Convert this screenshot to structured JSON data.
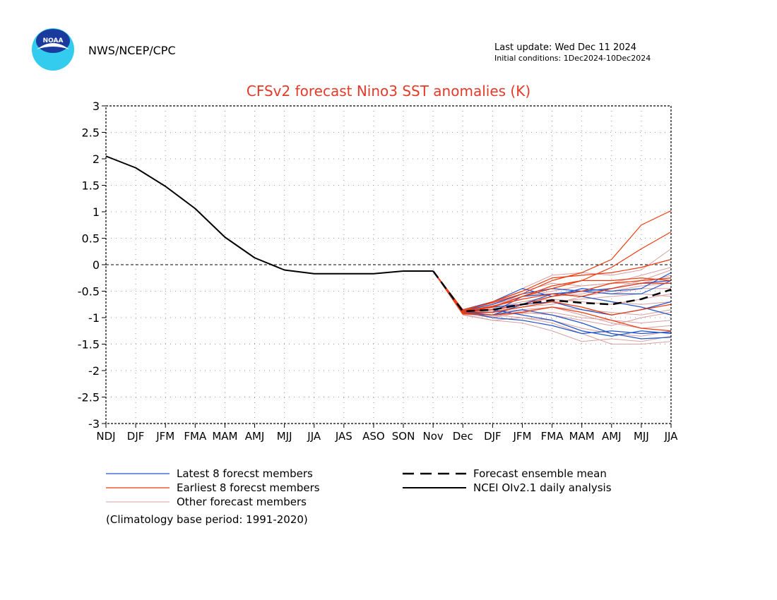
{
  "header": {
    "org": "NWS/NCEP/CPC",
    "logo_text": "NOAA",
    "last_update": "Last update: Wed Dec 11 2024",
    "initial_conditions": "Initial conditions: 1Dec2024-10Dec2024"
  },
  "colors": {
    "latest": "#2255cc",
    "earliest": "#ee3a0c",
    "other": "#d9a0a0",
    "mean": "#000000",
    "analysis": "#000000",
    "title": "#e43a2a",
    "grid": "#999999",
    "logo_outer": "#33ccee",
    "logo_inner": "#1a3a9e"
  },
  "footnote": "(Climatology base period: 1991-2020)",
  "chart_data": {
    "type": "line",
    "title": "CFSv2 forecast Nino3 SST anomalies (K)",
    "categories": [
      "NDJ",
      "DJF",
      "JFM",
      "FMA",
      "MAM",
      "AMJ",
      "MJJ",
      "JJA",
      "JAS",
      "ASO",
      "SON",
      "Nov",
      "Dec",
      "DJF",
      "JFM",
      "FMA",
      "MAM",
      "AMJ",
      "MJJ",
      "JJA"
    ],
    "yticks": [
      "3",
      "2.5",
      "2",
      "1.5",
      "1",
      "0.5",
      "0",
      "-0.5",
      "-1",
      "-1.5",
      "-2",
      "-2.5",
      "-3"
    ],
    "ylim": [
      -3,
      3
    ],
    "grid": true,
    "zero_line": true,
    "legend": [
      {
        "label": "Latest 8 forecst members",
        "style": "latest"
      },
      {
        "label": "Earliest 8 forecst members",
        "style": "earliest"
      },
      {
        "label": "Other forecast members",
        "style": "other"
      },
      {
        "label": "Forecast ensemble mean",
        "style": "mean"
      },
      {
        "label": "NCEI OIv2.1 daily analysis",
        "style": "analysis"
      }
    ],
    "analysis": {
      "name": "NCEI OIv2.1 daily analysis",
      "x": [
        0,
        1,
        2,
        3,
        4,
        5,
        6,
        7,
        8,
        9,
        10,
        11
      ],
      "values": [
        2.05,
        1.83,
        1.48,
        1.06,
        0.52,
        0.13,
        -0.1,
        -0.17,
        -0.17,
        -0.17,
        -0.12,
        -0.12
      ]
    },
    "forecast_x": [
      11,
      12,
      13,
      14,
      15,
      16,
      17,
      18,
      19
    ],
    "ensemble_mean": {
      "name": "Forecast ensemble mean",
      "values": [
        -0.12,
        -0.88,
        -0.85,
        -0.75,
        -0.67,
        -0.72,
        -0.75,
        -0.65,
        -0.47
      ]
    },
    "latest_members": [
      [
        -0.12,
        -0.9,
        -0.9,
        -0.6,
        -0.55,
        -0.5,
        -0.55,
        -0.55,
        -0.3
      ],
      [
        -0.12,
        -0.88,
        -1.0,
        -1.05,
        -1.15,
        -1.3,
        -1.25,
        -1.3,
        -1.27
      ],
      [
        -0.12,
        -0.85,
        -0.7,
        -0.45,
        -0.6,
        -0.45,
        -0.5,
        -0.45,
        -0.15
      ],
      [
        -0.12,
        -0.92,
        -0.95,
        -0.85,
        -0.95,
        -1.1,
        -1.3,
        -1.4,
        -1.37
      ],
      [
        -0.12,
        -0.9,
        -0.8,
        -0.75,
        -0.55,
        -0.6,
        -0.7,
        -0.8,
        -0.95
      ],
      [
        -0.12,
        -0.88,
        -0.85,
        -0.95,
        -1.05,
        -1.25,
        -1.35,
        -1.25,
        -1.3
      ],
      [
        -0.12,
        -0.87,
        -0.75,
        -0.55,
        -0.45,
        -0.5,
        -0.45,
        -0.35,
        -0.3
      ],
      [
        -0.12,
        -0.9,
        -0.95,
        -0.75,
        -0.7,
        -0.85,
        -0.95,
        -0.85,
        -0.7
      ]
    ],
    "earliest_members": [
      [
        -0.12,
        -0.85,
        -0.72,
        -0.55,
        -0.3,
        -0.15,
        0.1,
        0.75,
        1.02
      ],
      [
        -0.12,
        -0.9,
        -0.8,
        -0.6,
        -0.45,
        -0.3,
        -0.05,
        0.3,
        0.62
      ],
      [
        -0.12,
        -0.88,
        -0.7,
        -0.5,
        -0.25,
        -0.2,
        -0.15,
        -0.05,
        0.1
      ],
      [
        -0.12,
        -0.93,
        -0.95,
        -0.9,
        -0.8,
        -0.9,
        -1.05,
        -1.2,
        -1.25
      ],
      [
        -0.12,
        -0.87,
        -0.8,
        -0.6,
        -0.4,
        -0.3,
        -0.3,
        -0.25,
        -0.3
      ],
      [
        -0.12,
        -0.9,
        -0.85,
        -0.75,
        -0.6,
        -0.5,
        -0.35,
        -0.3,
        -0.25
      ],
      [
        -0.12,
        -0.88,
        -0.78,
        -0.65,
        -0.55,
        -0.6,
        -0.45,
        -0.35,
        -0.35
      ],
      [
        -0.12,
        -0.92,
        -0.9,
        -0.8,
        -0.7,
        -0.8,
        -0.95,
        -0.85,
        -0.75
      ]
    ],
    "other_members": [
      [
        -0.12,
        -0.85,
        -0.7,
        -0.45,
        -0.2,
        -0.15,
        -0.2,
        -0.1,
        0.3
      ],
      [
        -0.12,
        -0.95,
        -1.05,
        -1.1,
        -1.25,
        -1.45,
        -1.4,
        -1.45,
        -1.35
      ],
      [
        -0.12,
        -0.9,
        -0.85,
        -0.7,
        -0.6,
        -0.55,
        -0.45,
        -0.3,
        -0.1
      ],
      [
        -0.12,
        -0.88,
        -0.95,
        -1.0,
        -1.05,
        -1.2,
        -1.3,
        -1.35,
        -1.25
      ],
      [
        -0.12,
        -0.9,
        -0.8,
        -0.55,
        -0.45,
        -0.5,
        -0.55,
        -0.45,
        -0.45
      ],
      [
        -0.12,
        -0.92,
        -1.0,
        -0.9,
        -0.95,
        -1.05,
        -1.15,
        -1.0,
        -0.9
      ],
      [
        -0.12,
        -0.87,
        -0.75,
        -0.6,
        -0.5,
        -0.4,
        -0.35,
        -0.2,
        -0.05
      ],
      [
        -0.12,
        -0.9,
        -0.9,
        -0.85,
        -0.8,
        -0.85,
        -0.9,
        -0.95,
        -0.85
      ],
      [
        -0.12,
        -0.86,
        -0.82,
        -0.7,
        -0.65,
        -0.7,
        -0.75,
        -0.65,
        -0.55
      ],
      [
        -0.12,
        -0.94,
        -1.05,
        -1.0,
        -1.1,
        -1.3,
        -1.5,
        -1.5,
        -1.45
      ],
      [
        -0.12,
        -0.88,
        -0.72,
        -0.5,
        -0.35,
        -0.4,
        -0.35,
        -0.35,
        -0.2
      ],
      [
        -0.12,
        -0.9,
        -0.88,
        -0.8,
        -0.7,
        -0.65,
        -0.6,
        -0.55,
        -0.6
      ],
      [
        -0.12,
        -0.91,
        -0.95,
        -0.92,
        -0.9,
        -1.0,
        -1.05,
        -1.1,
        -1.05
      ],
      [
        -0.12,
        -0.89,
        -0.8,
        -0.65,
        -0.55,
        -0.6,
        -0.7,
        -0.75,
        -0.7
      ],
      [
        -0.12,
        -0.87,
        -0.85,
        -0.8,
        -0.75,
        -0.6,
        -0.5,
        -0.4,
        -0.35
      ],
      [
        -0.12,
        -0.93,
        -0.98,
        -0.88,
        -0.8,
        -0.95,
        -1.1,
        -1.2,
        -1.15
      ]
    ]
  }
}
